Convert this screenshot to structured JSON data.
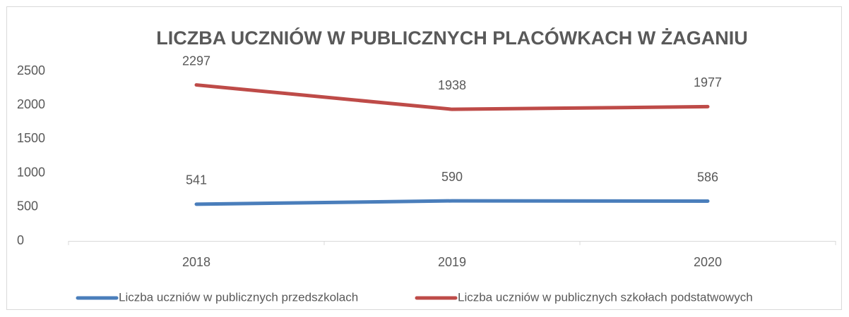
{
  "chart_data": {
    "type": "line",
    "title": "LICZBA UCZNIÓW W PUBLICZNYCH PLACÓWKACH W ŻAGANIU",
    "categories": [
      "2018",
      "2019",
      "2020"
    ],
    "series": [
      {
        "name": "Liczba uczniów w publicznych przedszkolach",
        "color": "#4a7ebb",
        "values": [
          541,
          590,
          586
        ]
      },
      {
        "name": "Liczba uczniów w publicznych szkołach podstatwowych",
        "color": "#be4b48",
        "values": [
          2297,
          1938,
          1977
        ]
      }
    ],
    "ylim": [
      0,
      2500
    ],
    "yticks": [
      0,
      500,
      1000,
      1500,
      2000,
      2500
    ],
    "grid": false,
    "legend": "bottom"
  }
}
